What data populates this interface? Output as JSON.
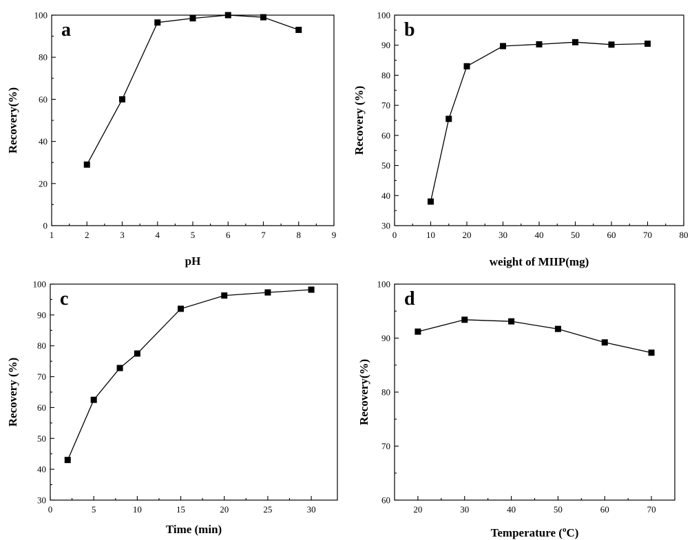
{
  "chart_data": [
    {
      "panel": "a",
      "type": "line",
      "xlabel": "pH",
      "ylabel": "Recovery(%)",
      "xlim": [
        1,
        9
      ],
      "ylim": [
        0,
        100
      ],
      "xticks": [
        1,
        2,
        3,
        4,
        5,
        6,
        7,
        8,
        9
      ],
      "yticks": [
        0,
        20,
        40,
        60,
        80,
        100
      ],
      "grid": false,
      "marker": "square",
      "x": [
        2,
        3,
        4,
        5,
        6,
        7,
        8
      ],
      "y": [
        29,
        60,
        96.5,
        98.5,
        100,
        99,
        93
      ]
    },
    {
      "panel": "b",
      "type": "line",
      "xlabel": "weight of MIIP(mg)",
      "ylabel": "Recovery (%)",
      "xlim": [
        0,
        80
      ],
      "ylim": [
        30,
        100
      ],
      "xticks": [
        0,
        10,
        20,
        30,
        40,
        50,
        60,
        70,
        80
      ],
      "yticks": [
        30,
        40,
        50,
        60,
        70,
        80,
        90,
        100
      ],
      "grid": false,
      "marker": "square",
      "x": [
        10,
        15,
        20,
        30,
        40,
        50,
        60,
        70
      ],
      "y": [
        38,
        65.5,
        83,
        89.7,
        90.3,
        91,
        90.2,
        90.5
      ]
    },
    {
      "panel": "c",
      "type": "line",
      "xlabel": "Time (min)",
      "ylabel": "Recovery (%)",
      "xlim": [
        0,
        33
      ],
      "ylim": [
        30,
        100
      ],
      "xticks": [
        0,
        5,
        10,
        15,
        20,
        25,
        30
      ],
      "yticks": [
        30,
        40,
        50,
        60,
        70,
        80,
        90,
        100
      ],
      "grid": false,
      "marker": "square",
      "x": [
        2,
        5,
        8,
        10,
        15,
        20,
        25,
        30
      ],
      "y": [
        43,
        62.5,
        72.8,
        77.5,
        92,
        96.3,
        97.3,
        98.2
      ]
    },
    {
      "panel": "d",
      "type": "line",
      "xlabel": "Temperature (",
      "xlabel_degree": "o",
      "xlabel_suffix": "C)",
      "ylabel": "Recovery(%)",
      "xlim": [
        15,
        75
      ],
      "ylim": [
        60,
        100
      ],
      "xticks": [
        20,
        30,
        40,
        50,
        60,
        70
      ],
      "yticks": [
        60,
        70,
        80,
        90,
        100
      ],
      "grid": false,
      "marker": "square",
      "x": [
        20,
        30,
        40,
        50,
        60,
        70
      ],
      "y": [
        91.2,
        93.4,
        93.1,
        91.7,
        89.2,
        87.3
      ]
    }
  ]
}
